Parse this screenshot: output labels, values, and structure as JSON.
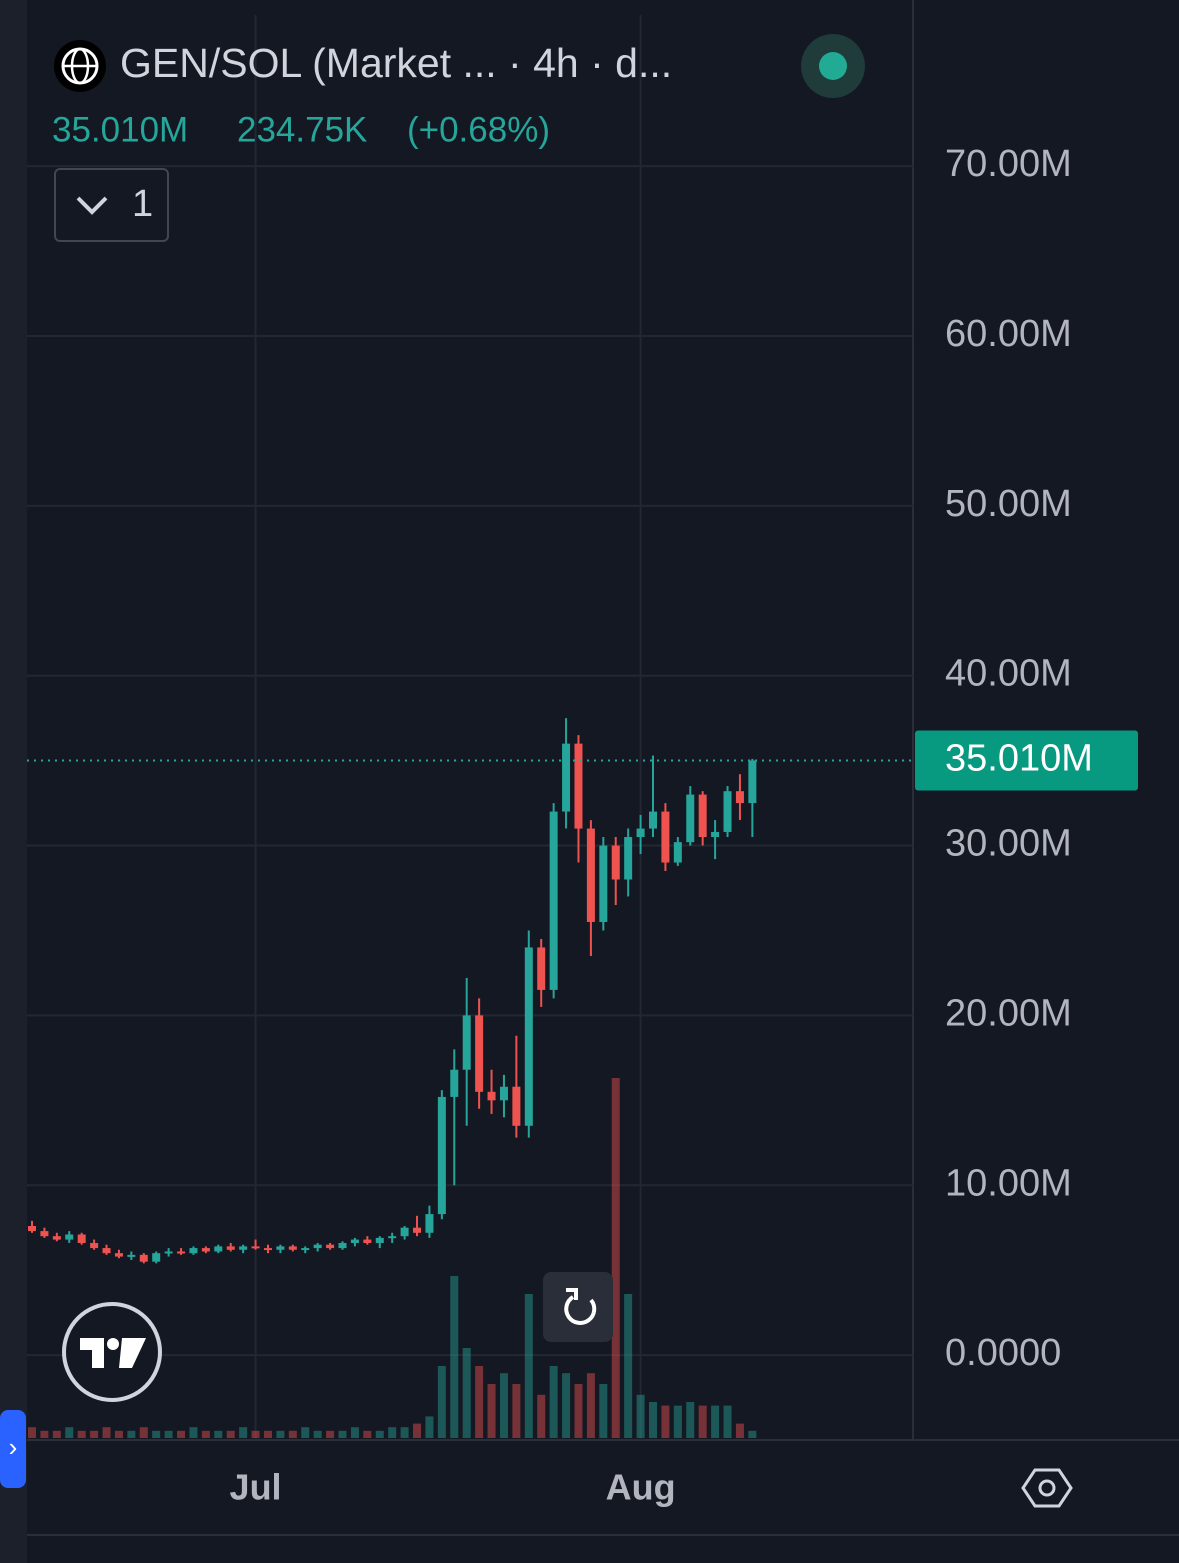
{
  "chart_data": {
    "type": "candlestick",
    "title": "GEN/SOL (Market ... · 4h · d...",
    "last_price": {
      "value": 35010000,
      "label": "35.010M"
    },
    "change": "234.75K",
    "change_pct": "(+0.68%)",
    "indicator_count": "1",
    "categories": [
      null,
      null,
      null,
      null,
      null,
      null,
      null,
      null,
      null,
      null,
      null,
      null,
      null,
      null,
      null,
      null,
      null,
      null,
      "Jul",
      null,
      null,
      null,
      null,
      null,
      null,
      null,
      null,
      null,
      null,
      null,
      null,
      null,
      null,
      null,
      null,
      null,
      null,
      null,
      null,
      null,
      null,
      null,
      null,
      null,
      null,
      null,
      null,
      null,
      null,
      "Aug",
      null,
      null,
      null,
      null,
      null,
      null,
      null,
      null,
      null
    ],
    "open": [
      7600000,
      7300000,
      7000000,
      6800000,
      7100000,
      6600000,
      6300000,
      6000000,
      5800000,
      5900000,
      5500000,
      6000000,
      6100000,
      6000000,
      6300000,
      6100000,
      6400000,
      6200000,
      6400000,
      6300000,
      6200000,
      6400000,
      6200000,
      6300000,
      6500000,
      6300000,
      6600000,
      6800000,
      6600000,
      6900000,
      7000000,
      7500000,
      7200000,
      8300000,
      15200000,
      16800000,
      20000000,
      15500000,
      15000000,
      15800000,
      13500000,
      24000000,
      21500000,
      32000000,
      36000000,
      31000000,
      25500000,
      30000000,
      28000000,
      30500000,
      31000000,
      32000000,
      29000000,
      30200000,
      33000000,
      30500000,
      30800000,
      33200000,
      32500000
    ],
    "high": [
      7900000,
      7500000,
      7200000,
      7300000,
      7200000,
      6800000,
      6500000,
      6200000,
      6100000,
      6000000,
      6100000,
      6300000,
      6300000,
      6400000,
      6400000,
      6500000,
      6600000,
      6500000,
      6800000,
      6500000,
      6500000,
      6500000,
      6400000,
      6600000,
      6600000,
      6700000,
      6900000,
      7000000,
      7000000,
      7200000,
      7600000,
      8200000,
      8800000,
      15600000,
      18000000,
      22200000,
      21000000,
      16800000,
      16500000,
      18800000,
      25000000,
      24500000,
      32500000,
      37500000,
      36500000,
      31500000,
      30500000,
      30500000,
      31000000,
      31800000,
      35300000,
      32500000,
      30500000,
      33500000,
      33200000,
      31500000,
      33500000,
      34200000,
      35100000
    ],
    "low": [
      7200000,
      6900000,
      6700000,
      6600000,
      6500000,
      6200000,
      5900000,
      5700000,
      5600000,
      5400000,
      5400000,
      5800000,
      5900000,
      5900000,
      6000000,
      6000000,
      6100000,
      6000000,
      6200000,
      6000000,
      6000000,
      6100000,
      6000000,
      6100000,
      6200000,
      6200000,
      6400000,
      6500000,
      6300000,
      6600000,
      6800000,
      7000000,
      6900000,
      8000000,
      10000000,
      13500000,
      14500000,
      14200000,
      14000000,
      12800000,
      12800000,
      20500000,
      21000000,
      31000000,
      29000000,
      23500000,
      25000000,
      26500000,
      27000000,
      29500000,
      30500000,
      28500000,
      28800000,
      30000000,
      30000000,
      29200000,
      30500000,
      31500000,
      30500000
    ],
    "close": [
      7300000,
      7000000,
      6800000,
      7100000,
      6600000,
      6300000,
      6000000,
      5800000,
      5900000,
      5500000,
      6000000,
      6100000,
      6000000,
      6300000,
      6100000,
      6400000,
      6200000,
      6400000,
      6300000,
      6200000,
      6400000,
      6200000,
      6300000,
      6500000,
      6300000,
      6600000,
      6800000,
      6600000,
      6900000,
      7000000,
      7500000,
      7200000,
      8300000,
      15200000,
      16800000,
      20000000,
      15500000,
      15000000,
      15800000,
      13500000,
      24000000,
      21500000,
      32000000,
      36000000,
      31000000,
      25500000,
      30000000,
      28000000,
      30500000,
      31000000,
      32000000,
      29000000,
      30200000,
      33000000,
      30500000,
      30800000,
      33200000,
      32500000,
      35010000
    ],
    "volume": [
      3,
      2,
      2,
      3,
      2,
      2,
      3,
      2,
      2,
      3,
      2,
      2,
      2,
      3,
      2,
      2,
      2,
      3,
      2,
      2,
      2,
      2,
      3,
      2,
      2,
      2,
      3,
      2,
      2,
      3,
      3,
      4,
      6,
      20,
      45,
      25,
      20,
      15,
      18,
      15,
      40,
      12,
      20,
      18,
      15,
      18,
      15,
      100,
      40,
      12,
      10,
      9,
      9,
      10,
      9,
      9,
      9,
      4,
      2
    ],
    "y2lim": [
      0,
      100
    ],
    "up_color": "#26a69a",
    "down_color": "#ef5350",
    "ylim": [
      -5000000,
      78900000
    ],
    "yticks": [
      {
        "value": 0,
        "label": "0.0000"
      },
      {
        "value": 10000000,
        "label": "10.00M"
      },
      {
        "value": 20000000,
        "label": "20.00M"
      },
      {
        "value": 30000000,
        "label": "30.00M"
      },
      {
        "value": 40000000,
        "label": "40.00M"
      },
      {
        "value": 50000000,
        "label": "50.00M"
      },
      {
        "value": 60000000,
        "label": "60.00M"
      },
      {
        "value": 70000000,
        "label": "70.00M"
      }
    ],
    "grid": true
  }
}
